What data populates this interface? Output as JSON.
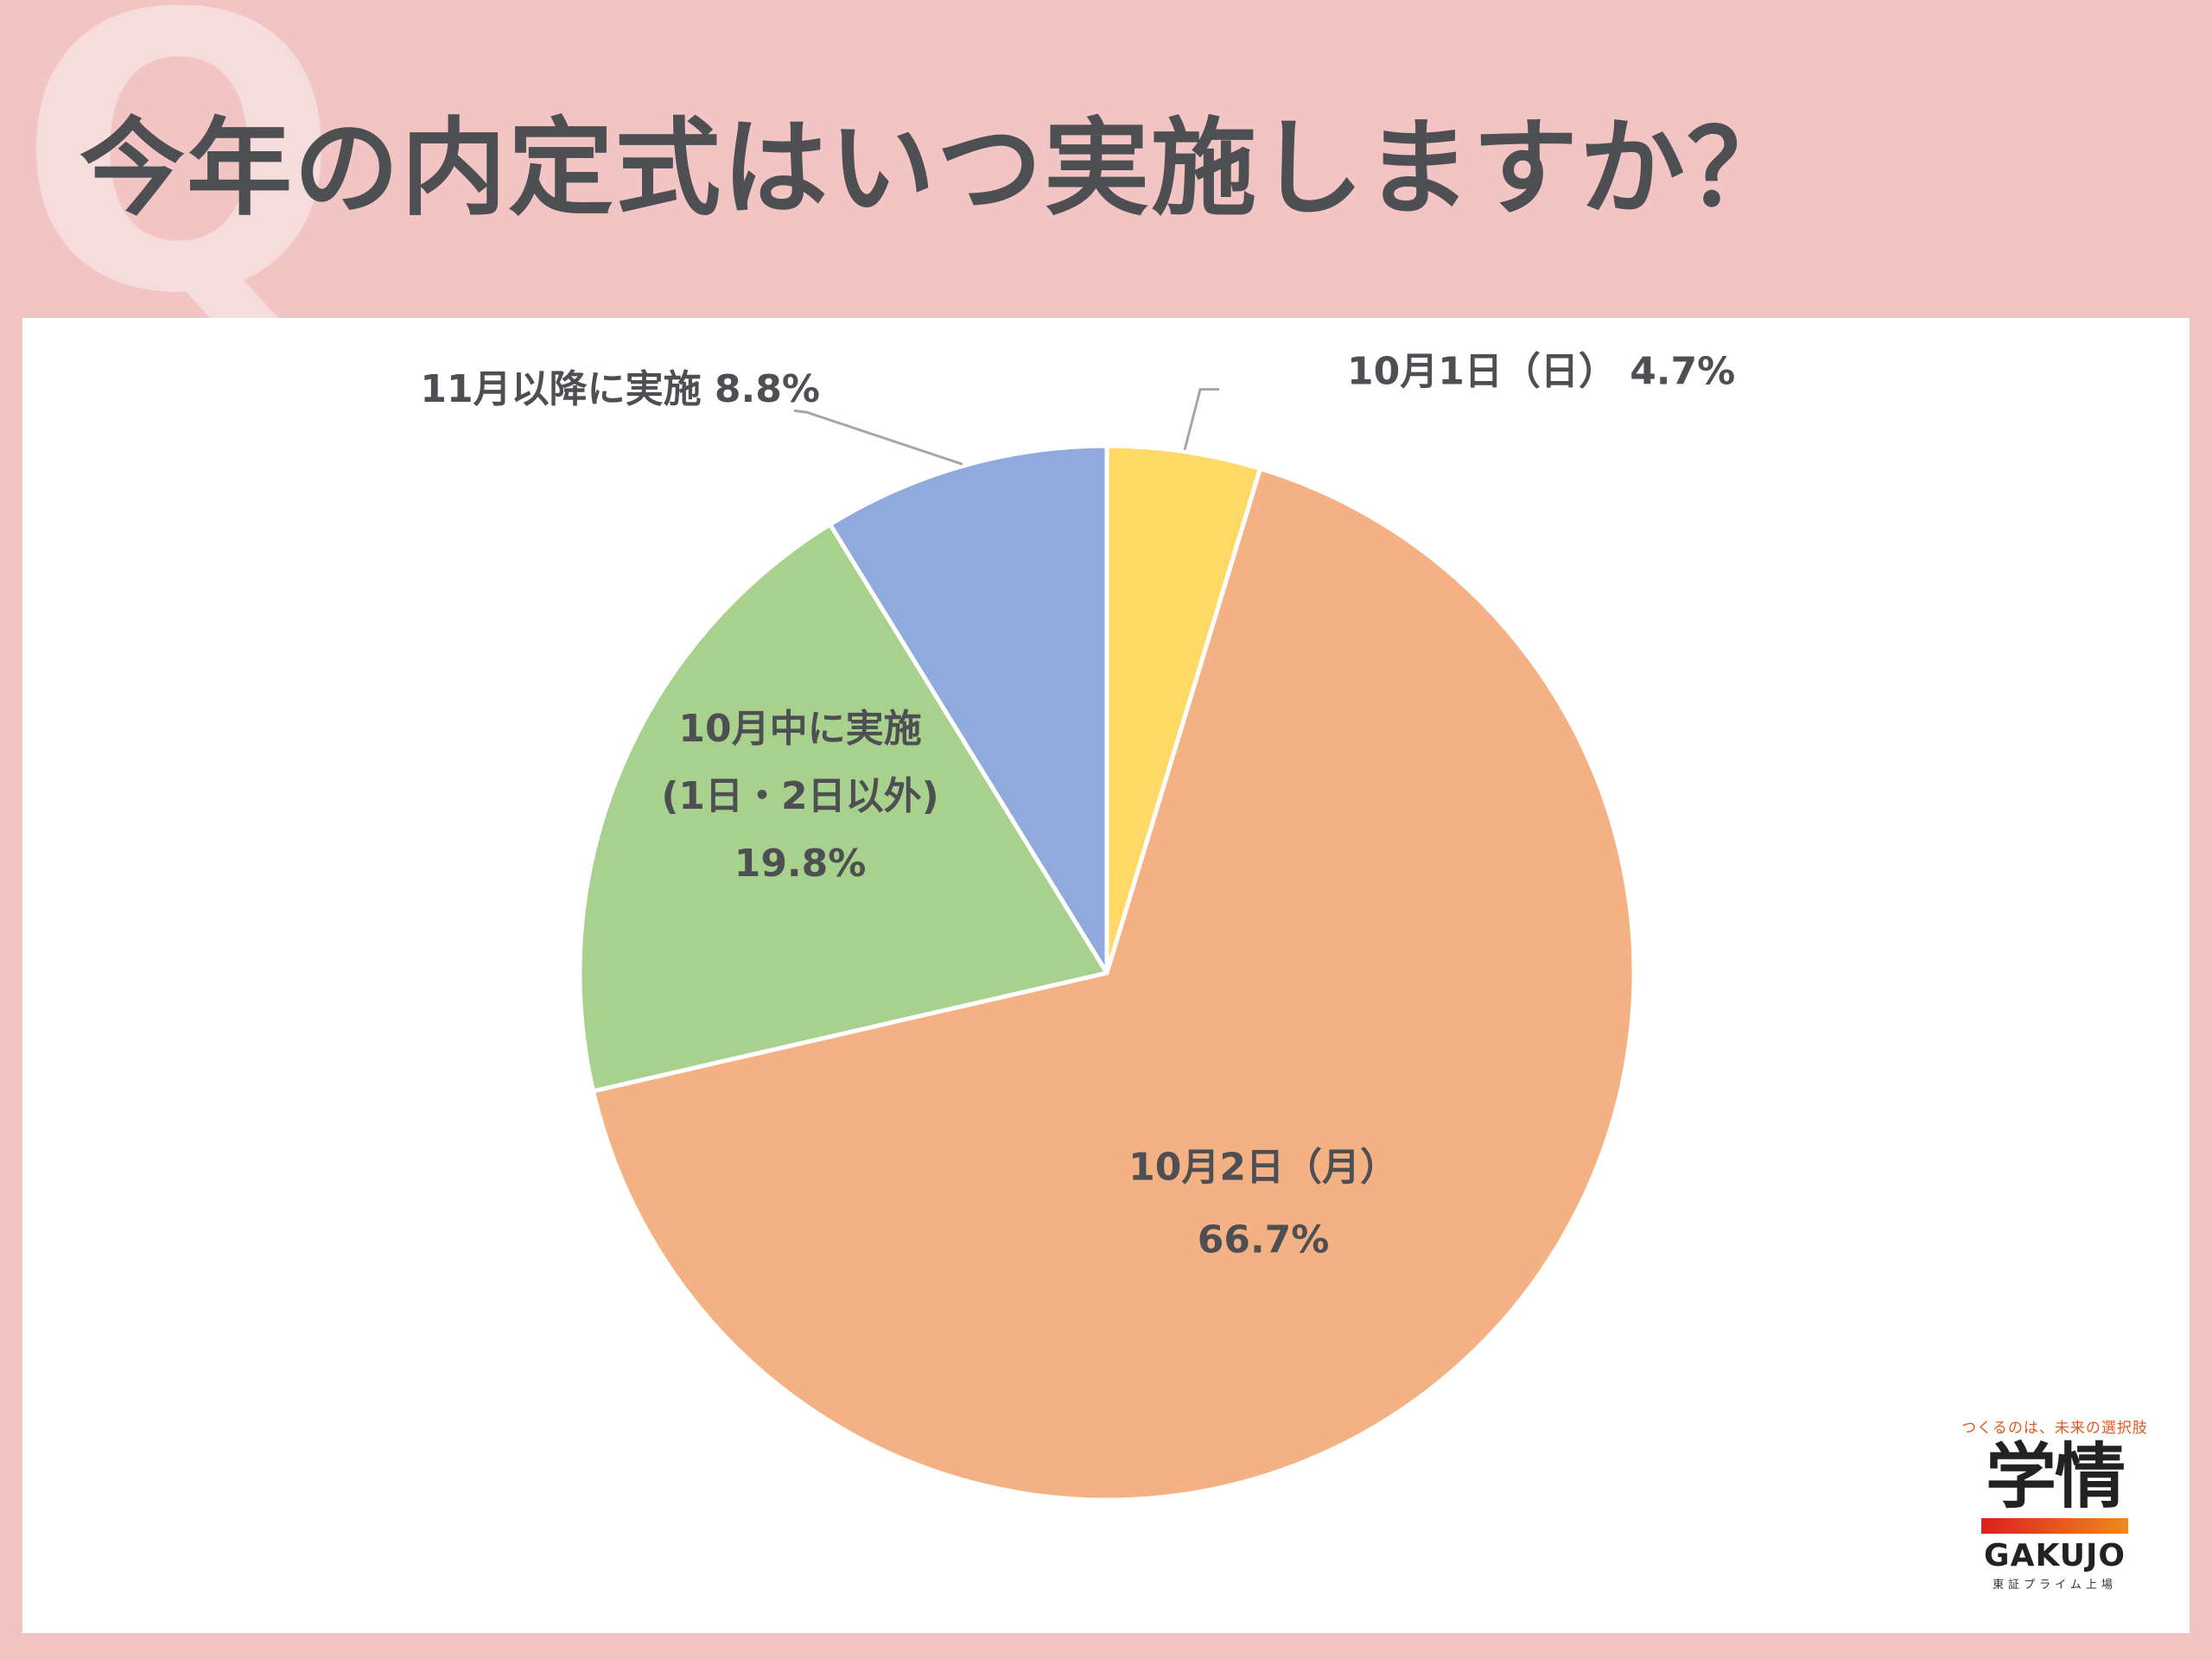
{
  "header": {
    "q_mark": "Q",
    "title": "今年の内定式はいつ実施しますか？"
  },
  "chart_data": {
    "type": "pie",
    "title": "",
    "slices": [
      {
        "label": "10月1日（日）",
        "value": 4.7,
        "value_label": "4.7%",
        "color": "#ffd966"
      },
      {
        "label": "10月2日（月）",
        "value": 66.7,
        "value_label": "66.7%",
        "color": "#f4b183"
      },
      {
        "label": "10月中に実施\n(1日・2日以外)",
        "label_lines": [
          "10月中に実施",
          "(1日・2日以外)"
        ],
        "value": 19.8,
        "value_label": "19.8%",
        "color": "#a9d18e"
      },
      {
        "label": "11月以降に実施",
        "value": 8.8,
        "value_label": "8.8%",
        "color": "#8faadc"
      }
    ],
    "start_angle_deg": 0,
    "direction": "clockwise",
    "legend": "none"
  },
  "logo": {
    "tagline": "つくるのは、未来の選択肢",
    "kanji": "学情",
    "name": "GAKUJO",
    "sub": "東証プライム上場"
  }
}
